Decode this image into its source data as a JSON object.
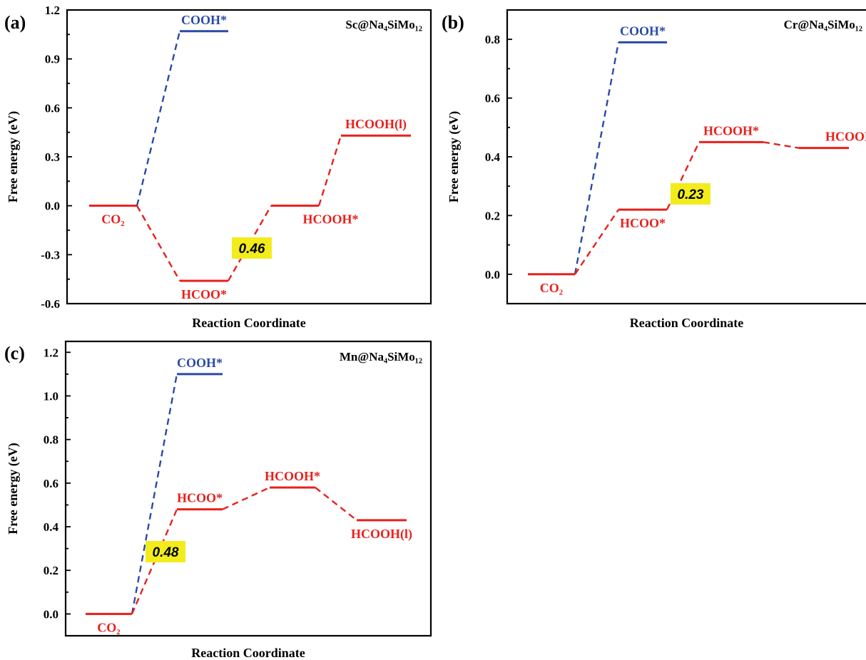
{
  "colors": {
    "red": "#e8201c",
    "blue": "#2b4aa6",
    "highlight": "#f2ec1c",
    "axis": "#000000"
  },
  "chart_data": [
    {
      "type": "line",
      "panel_label": "(a)",
      "title": "Sc@Na₄SiMo₁₂",
      "xlabel": "Reaction Coordinate",
      "ylabel": "Free energy (eV)",
      "ylim": [
        -0.6,
        1.2
      ],
      "yticks": [
        -0.6,
        -0.3,
        0.0,
        0.3,
        0.6,
        0.9,
        1.2
      ],
      "ytick_labels": [
        "-0.6",
        "-0.3",
        "0.0",
        "0.3",
        "0.6",
        "0.9",
        "1.2"
      ],
      "grid": false,
      "levels": [
        {
          "label": "CO₂",
          "value": 0.0,
          "path": "red"
        },
        {
          "label": "COOH*",
          "value": 1.07,
          "path": "blue"
        },
        {
          "label": "HCOO*",
          "value": -0.46,
          "path": "red"
        },
        {
          "label": "HCOOH*",
          "value": 0.0,
          "path": "red"
        },
        {
          "label": "HCOOH(l)",
          "value": 0.43,
          "path": "red"
        }
      ],
      "barrier": "0.46"
    },
    {
      "type": "line",
      "panel_label": "(b)",
      "title": "Cr@Na₄SiMo₁₂",
      "xlabel": "Reaction Coordinate",
      "ylabel": "Free energy (eV)",
      "ylim": [
        -0.1,
        0.9
      ],
      "yticks": [
        0.0,
        0.2,
        0.4,
        0.6,
        0.8
      ],
      "ytick_labels": [
        "0.0",
        "0.2",
        "0.4",
        "0.6",
        "0.8"
      ],
      "grid": false,
      "levels": [
        {
          "label": "CO₂",
          "value": 0.0,
          "path": "red"
        },
        {
          "label": "COOH*",
          "value": 0.79,
          "path": "blue"
        },
        {
          "label": "HCOO*",
          "value": 0.22,
          "path": "red"
        },
        {
          "label": "HCOOH*",
          "value": 0.45,
          "path": "red"
        },
        {
          "label": "HCOOH(l)",
          "value": 0.43,
          "path": "red"
        }
      ],
      "barrier": "0.23"
    },
    {
      "type": "line",
      "panel_label": "(c)",
      "title": "Mn@Na₄SiMo₁₂",
      "xlabel": "Reaction Coordinate",
      "ylabel": "Free energy (eV)",
      "ylim": [
        -0.1,
        1.25
      ],
      "yticks": [
        0.0,
        0.2,
        0.4,
        0.6,
        0.8,
        1.0,
        1.2
      ],
      "ytick_labels": [
        "0.0",
        "0.2",
        "0.4",
        "0.6",
        "0.8",
        "1.0",
        "1.2"
      ],
      "grid": false,
      "levels": [
        {
          "label": "CO₂",
          "value": 0.0,
          "path": "red"
        },
        {
          "label": "COOH*",
          "value": 1.1,
          "path": "blue"
        },
        {
          "label": "HCOO*",
          "value": 0.48,
          "path": "red"
        },
        {
          "label": "HCOOH*",
          "value": 0.58,
          "path": "red"
        },
        {
          "label": "HCOOH(l)",
          "value": 0.43,
          "path": "red"
        }
      ],
      "barrier": "0.48"
    }
  ]
}
